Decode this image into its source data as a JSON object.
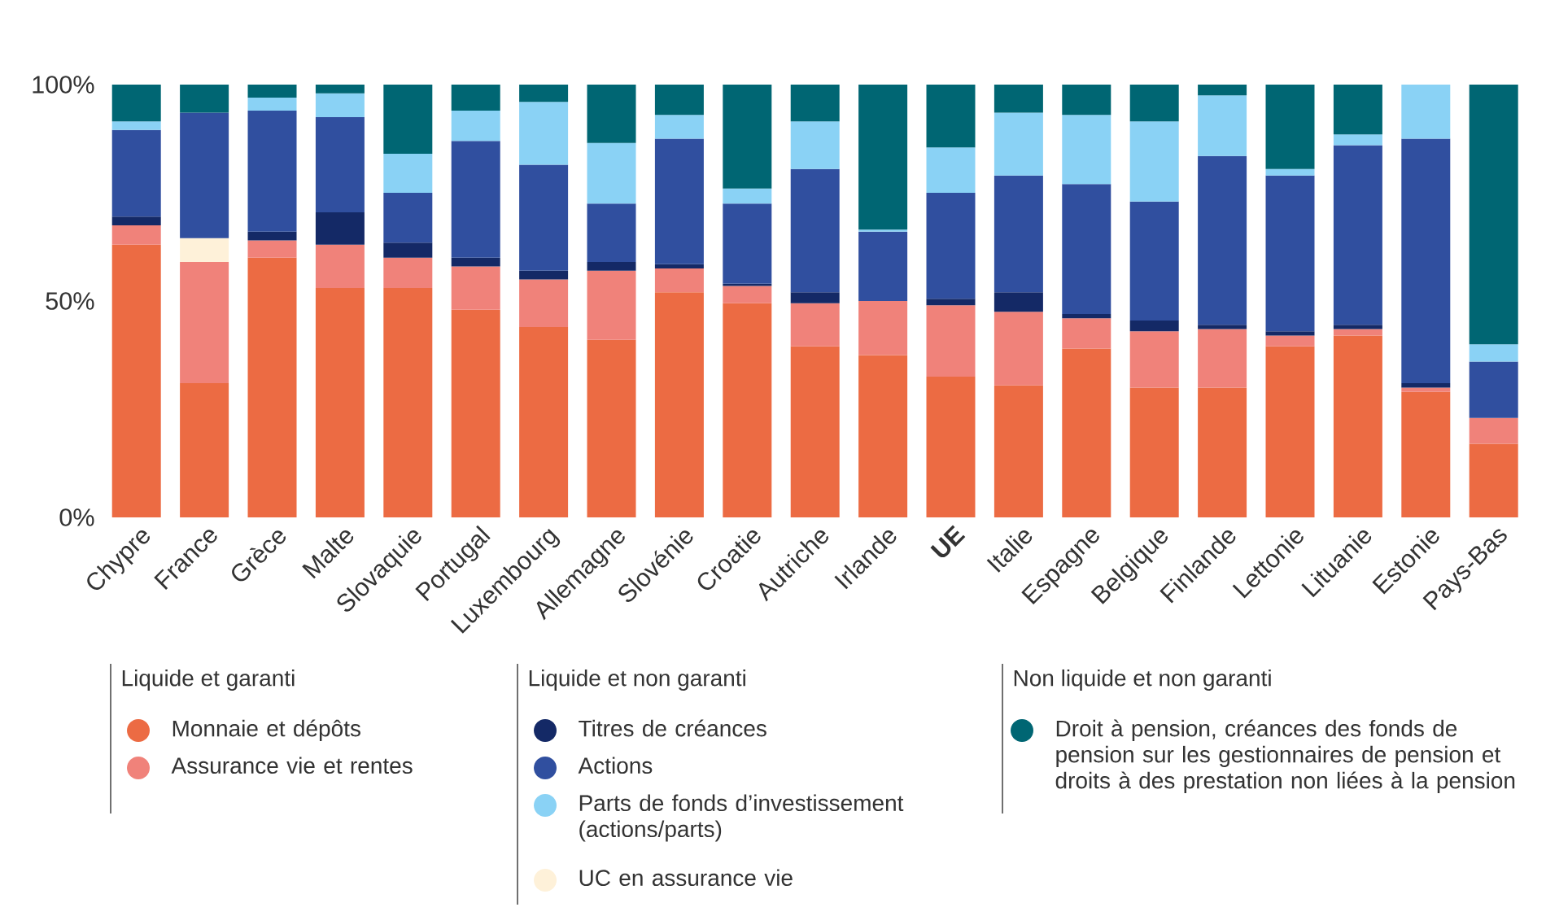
{
  "chart_data": {
    "type": "bar",
    "stacked": true,
    "legend": "bottom",
    "categories": [
      "Chypre",
      "France",
      "Grèce",
      "Malte",
      "Slovaquie",
      "Portugal",
      "Luxembourg",
      "Allemagne",
      "Slovénie",
      "Croatie",
      "Autriche",
      "Irlande",
      "**UE**",
      "Italie",
      "Espagne",
      "Belgique",
      "Finlande",
      "Lettonie",
      "Lituanie",
      "Estonie",
      "Pays-Bas"
    ],
    "ylim": [
      0,
      100
    ],
    "yticks": [
      {
        "value": 0,
        "label": "0%"
      },
      {
        "value": 50,
        "label": "50%"
      },
      {
        "value": 100,
        "label": "100%"
      }
    ],
    "annotations": [
      "Liquide et garanti",
      "Liquide et non garanti",
      "Non liquide et non garanti"
    ],
    "series": [
      {
        "name": "Monnaie et dépôts",
        "color": "#ec6b43",
        "values": [
          63,
          31,
          60,
          53,
          53,
          48,
          44,
          41,
          52,
          49.5,
          39.5,
          37.5,
          32.5,
          30.5,
          39,
          30,
          30,
          39.5,
          42,
          29,
          17
        ]
      },
      {
        "name": "Assurance vie et rentes",
        "color": "#f0827a",
        "values": [
          4.5,
          28,
          4,
          10,
          7,
          10,
          11,
          16,
          5.5,
          4,
          10,
          12.5,
          16.5,
          17,
          7,
          13,
          13.5,
          2.5,
          1.5,
          1,
          6
        ]
      },
      {
        "name": "UC en assurance vie",
        "color": "#fef1d9",
        "values": [
          0,
          5.5,
          0,
          0,
          0,
          0,
          0,
          0,
          0,
          0,
          0,
          0,
          0,
          0,
          0,
          0,
          0,
          0,
          0,
          0,
          0
        ]
      },
      {
        "name": "Titres de créances",
        "color": "#142966",
        "values": [
          2,
          0,
          2,
          7.5,
          3.5,
          2,
          2,
          2,
          1,
          0.5,
          2.5,
          0,
          1.5,
          4.5,
          1,
          2.5,
          1,
          1,
          1,
          1,
          0
        ]
      },
      {
        "name": "Actions",
        "color": "#304f9f",
        "values": [
          20,
          29,
          28,
          22,
          11.5,
          27,
          24.5,
          13.5,
          29,
          18.5,
          28.5,
          16,
          24.5,
          27,
          30,
          27.5,
          39,
          36,
          41.5,
          56.5,
          13
        ]
      },
      {
        "name": "Parts de fonds d’investissement (actions/parts)",
        "color": "#8ad2f5",
        "values": [
          2,
          0,
          3,
          5.5,
          9,
          7,
          14.5,
          14,
          5.5,
          3.5,
          11,
          0.5,
          10.5,
          14.5,
          16,
          18.5,
          14,
          1.5,
          2.5,
          12.5,
          4
        ]
      },
      {
        "name": "Droit à pension, créances des fonds de pension sur les gestionnaires de pension et droits à des prestation non liées à la pension",
        "color": "#006673",
        "values": [
          8.5,
          6.5,
          3,
          2,
          16,
          6,
          4,
          13.5,
          7,
          24,
          8.5,
          33.5,
          14.5,
          6.5,
          7,
          8.5,
          2.5,
          19.5,
          11.5,
          0,
          60
        ]
      }
    ]
  }
}
